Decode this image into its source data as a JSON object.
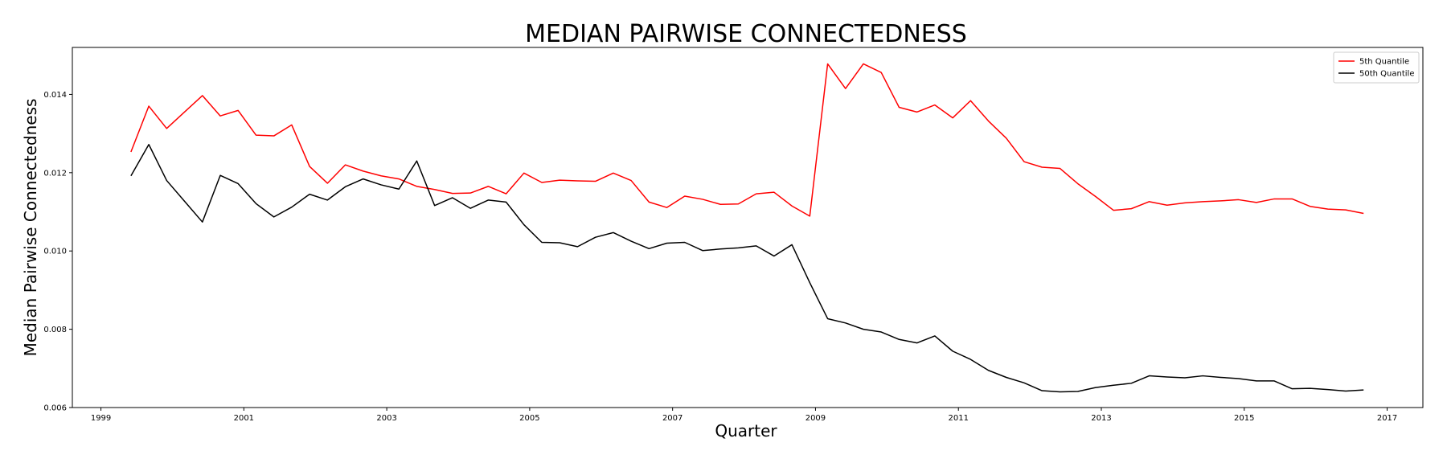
{
  "chart_data": {
    "type": "line",
    "title": "MEDIAN PAIRWISE CONNECTEDNESS",
    "xlabel": "Quarter",
    "ylabel": "Median Pairwise Connectedness",
    "xlim": [
      1998.6,
      2017.5
    ],
    "ylim": [
      0.006,
      0.0152
    ],
    "x_ticks": [
      1999,
      2001,
      2003,
      2005,
      2007,
      2009,
      2011,
      2013,
      2015,
      2017
    ],
    "y_ticks": [
      0.006,
      0.008,
      0.01,
      0.012,
      0.014
    ],
    "y_tick_labels": [
      "0.006",
      "0.008",
      "0.010",
      "0.012",
      "0.014"
    ],
    "grid": false,
    "legend_position": "top-right",
    "x": [
      1999.42,
      1999.67,
      1999.92,
      2000.17,
      2000.42,
      2000.67,
      2000.92,
      2001.17,
      2001.42,
      2001.67,
      2001.92,
      2002.17,
      2002.42,
      2002.67,
      2002.92,
      2003.17,
      2003.42,
      2003.67,
      2003.92,
      2004.17,
      2004.42,
      2004.67,
      2004.92,
      2005.17,
      2005.42,
      2005.67,
      2005.92,
      2006.17,
      2006.42,
      2006.67,
      2006.92,
      2007.17,
      2007.42,
      2007.67,
      2007.92,
      2008.17,
      2008.42,
      2008.67,
      2008.92,
      2009.17,
      2009.42,
      2009.67,
      2009.92,
      2010.17,
      2010.42,
      2010.67,
      2010.92,
      2011.17,
      2011.42,
      2011.67,
      2011.92,
      2012.17,
      2012.42,
      2012.67,
      2012.92,
      2013.17,
      2013.42,
      2013.67,
      2013.92,
      2014.17,
      2014.42,
      2014.67,
      2014.92,
      2015.17,
      2015.42,
      2015.67,
      2015.92,
      2016.17,
      2016.42,
      2016.67
    ],
    "series": [
      {
        "name": "5th Quantile",
        "color": "#ff0000",
        "values": [
          0.01253,
          0.0137,
          0.01313,
          0.01355,
          0.01397,
          0.01345,
          0.01359,
          0.01296,
          0.01294,
          0.01322,
          0.01216,
          0.01173,
          0.0122,
          0.01204,
          0.01192,
          0.01184,
          0.01165,
          0.01157,
          0.01147,
          0.01148,
          0.01165,
          0.01146,
          0.01199,
          0.01175,
          0.01181,
          0.01179,
          0.01178,
          0.01199,
          0.0118,
          0.01125,
          0.01111,
          0.0114,
          0.01132,
          0.01119,
          0.0112,
          0.01146,
          0.0115,
          0.01115,
          0.01089,
          0.01478,
          0.01415,
          0.01478,
          0.01456,
          0.01367,
          0.01355,
          0.01373,
          0.0134,
          0.01384,
          0.01332,
          0.01288,
          0.01228,
          0.01214,
          0.01211,
          0.01172,
          0.01139,
          0.01104,
          0.01108,
          0.01126,
          0.01117,
          0.01123,
          0.01126,
          0.01128,
          0.01131,
          0.01124,
          0.01133,
          0.01133,
          0.01114,
          0.01107,
          0.01105,
          0.01096
        ]
      },
      {
        "name": "50th Quantile",
        "color": "#000000",
        "values": [
          0.01192,
          0.01272,
          0.0118,
          0.01127,
          0.01074,
          0.01193,
          0.01172,
          0.01121,
          0.01087,
          0.01112,
          0.01145,
          0.0113,
          0.01164,
          0.01184,
          0.01169,
          0.01158,
          0.0123,
          0.01116,
          0.01136,
          0.01109,
          0.0113,
          0.01125,
          0.01067,
          0.01022,
          0.01021,
          0.01011,
          0.01035,
          0.01047,
          0.01025,
          0.01006,
          0.0102,
          0.01022,
          0.01001,
          0.01005,
          0.01008,
          0.01013,
          0.00987,
          0.01016,
          0.00919,
          0.00827,
          0.00816,
          0.008,
          0.00793,
          0.00774,
          0.00765,
          0.00783,
          0.00744,
          0.00723,
          0.00695,
          0.00677,
          0.00663,
          0.00643,
          0.0064,
          0.00641,
          0.00651,
          0.00657,
          0.00662,
          0.00681,
          0.00678,
          0.00676,
          0.00681,
          0.00677,
          0.00674,
          0.00668,
          0.00668,
          0.00648,
          0.00649,
          0.00646,
          0.00642,
          0.00645
        ]
      }
    ]
  }
}
